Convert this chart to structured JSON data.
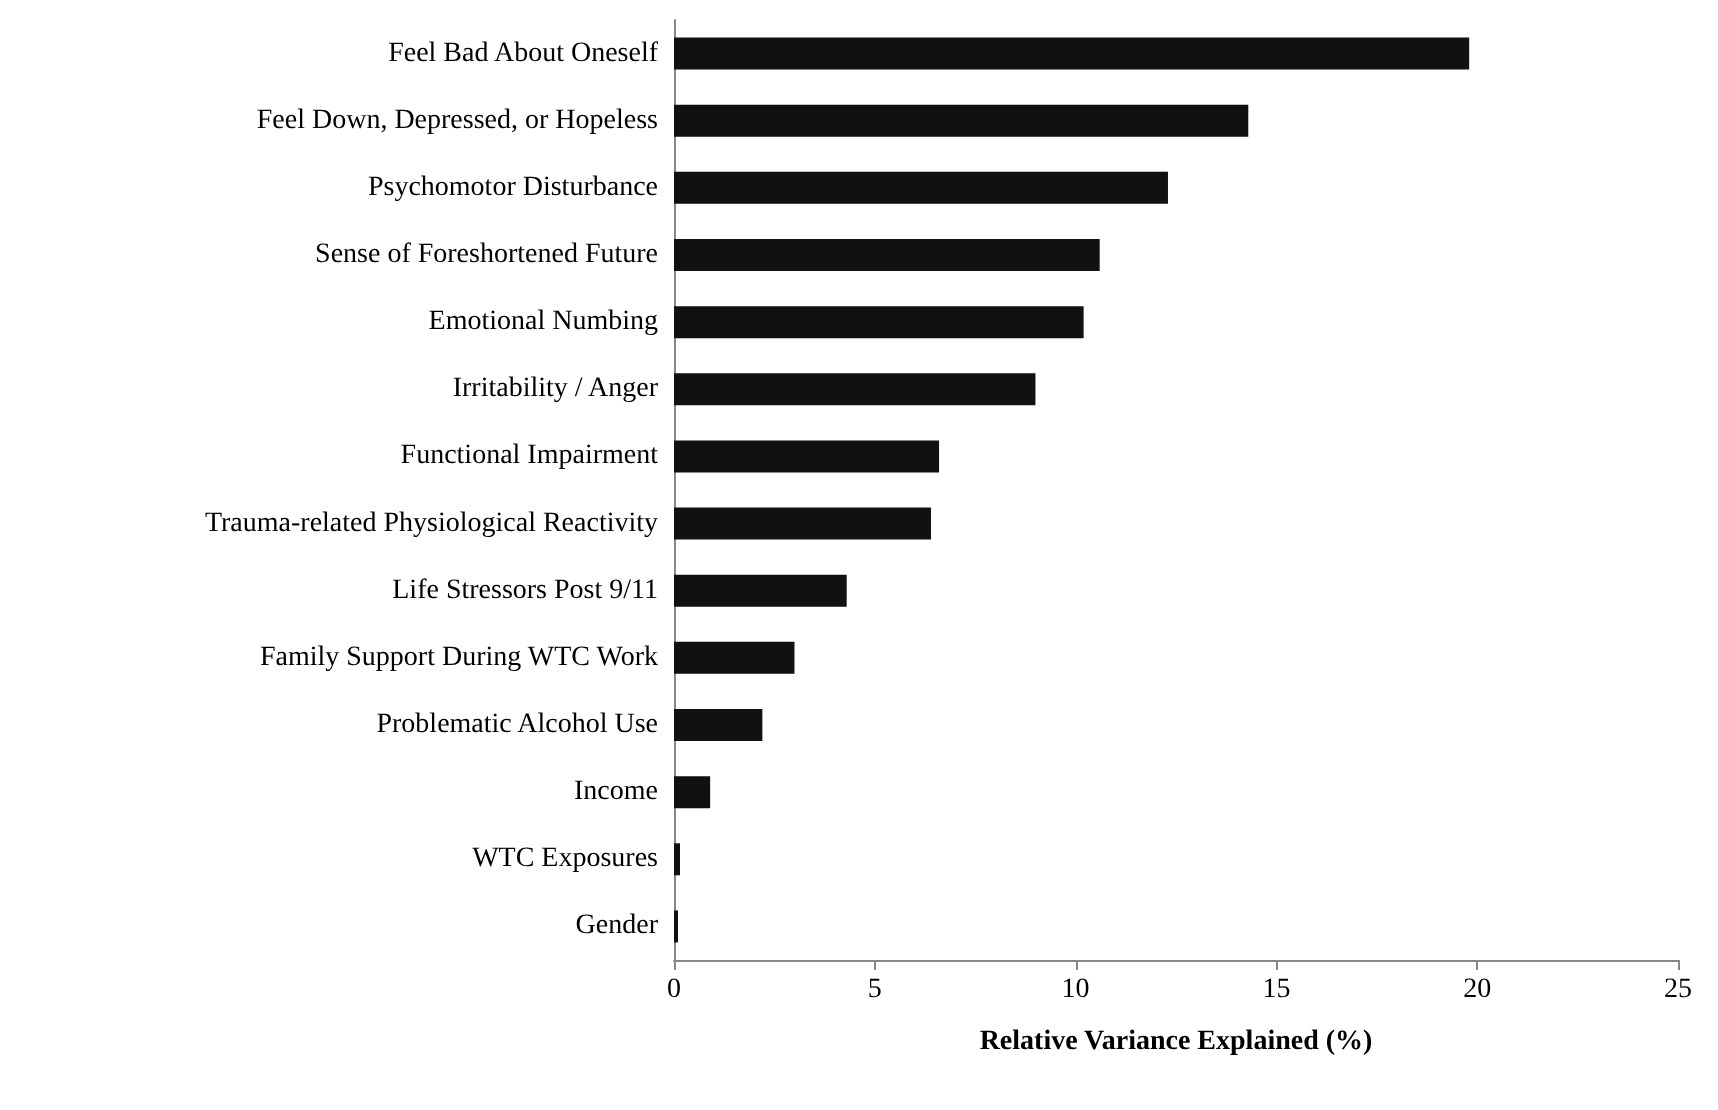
{
  "chart_data": {
    "type": "bar",
    "orientation": "horizontal",
    "xlabel": "Relative Variance Explained (%)",
    "categories": [
      "Feel Bad About Oneself",
      "Feel Down, Depressed, or Hopeless",
      "Psychomotor Disturbance",
      "Sense of Foreshortened Future",
      "Emotional Numbing",
      "Irritability / Anger",
      "Functional Impairment",
      "Trauma-related Physiological Reactivity",
      "Life Stressors Post 9/11",
      "Family Support During WTC Work",
      "Problematic Alcohol Use",
      "Income",
      "WTC Exposures",
      "Gender"
    ],
    "values": [
      19.8,
      14.3,
      12.3,
      10.6,
      10.2,
      9.0,
      6.6,
      6.4,
      4.3,
      3.0,
      2.2,
      0.9,
      0.15,
      0.1
    ],
    "color": "#111111",
    "xlim": [
      0,
      25
    ],
    "xticks": [
      0,
      5,
      10,
      15,
      20,
      25
    ],
    "grid": false
  }
}
